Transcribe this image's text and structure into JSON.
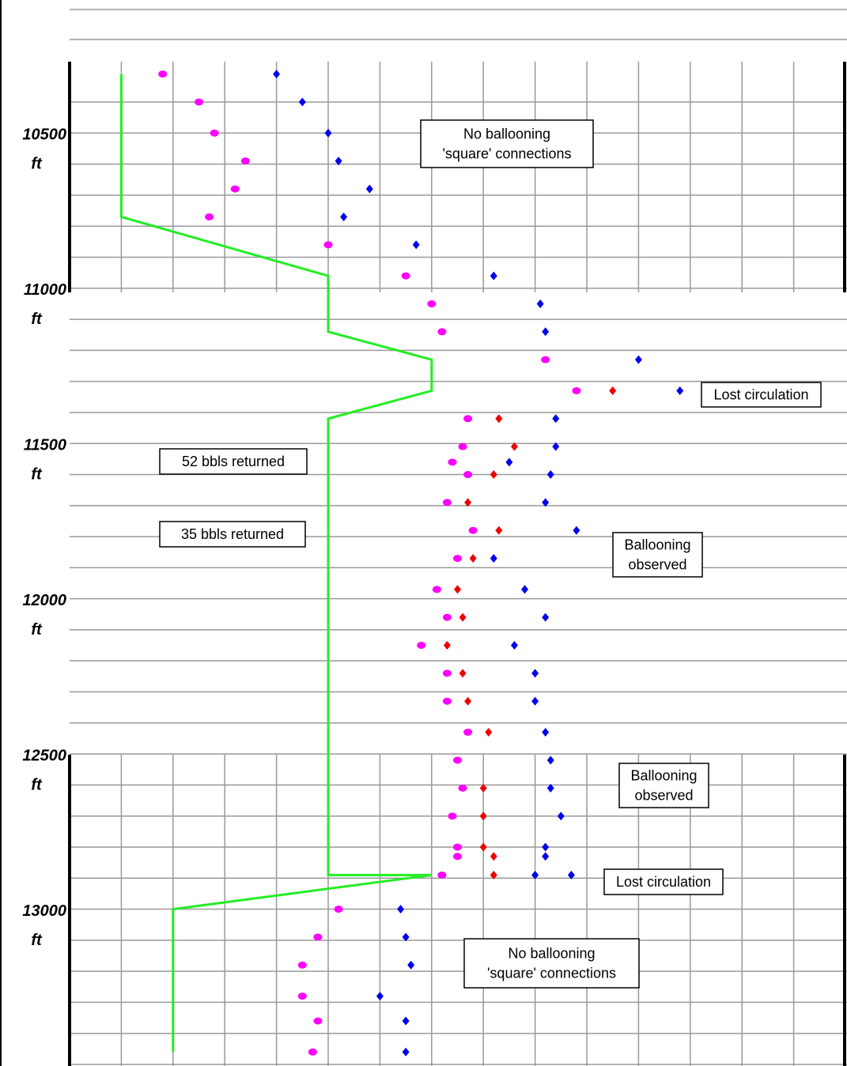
{
  "chart_data": {
    "type": "scatter",
    "y_unit": "ft",
    "ylim": [
      10270,
      13500
    ],
    "y_inverted": true,
    "yticks": [
      10500,
      11000,
      11500,
      12000,
      12500,
      13000
    ],
    "ygrid": [
      10400,
      10500,
      10600,
      10700,
      10800,
      10900,
      11000,
      11100,
      11200,
      11300,
      11400,
      11500,
      11600,
      11700,
      11800,
      11900,
      12000,
      12100,
      12200,
      12300,
      12400,
      12500,
      12600,
      12700,
      12800,
      12900,
      13000,
      13100,
      13200,
      13300,
      13400,
      13500
    ],
    "xlim": [
      0,
      15
    ],
    "xgrid": [
      1,
      2,
      3,
      4,
      5,
      6,
      7,
      8,
      9,
      10,
      11,
      12,
      13,
      14
    ],
    "series": [
      {
        "type": "line",
        "color": "#22ee22",
        "x": [
          1.0,
          1.0,
          5.0,
          5.0,
          7.0,
          7.0,
          5.0,
          5.0,
          7.0,
          2.0,
          2.0
        ],
        "y": [
          10310,
          10770,
          10960,
          11140,
          11230,
          11330,
          11420,
          12890,
          12890,
          13000,
          13460
        ]
      },
      {
        "type": "scatter",
        "marker": "circle",
        "color": "#ff00ff",
        "x": [
          1.8,
          2.5,
          2.8,
          3.4,
          3.2,
          2.7,
          5.0,
          6.5,
          7.0,
          7.2,
          9.2,
          9.8,
          7.7,
          7.6,
          7.4,
          7.7,
          7.3,
          7.8,
          7.5,
          7.1,
          7.3,
          6.8,
          7.3,
          7.3,
          7.7,
          7.5,
          7.6,
          7.4,
          7.5,
          7.5,
          7.2,
          5.2,
          4.8,
          4.5,
          4.5,
          4.8,
          4.7
        ],
        "y": [
          10310,
          10400,
          10500,
          10590,
          10680,
          10770,
          10860,
          10960,
          11050,
          11140,
          11230,
          11330,
          11420,
          11510,
          11560,
          11600,
          11690,
          11780,
          11870,
          11970,
          12060,
          12150,
          12240,
          12330,
          12430,
          12520,
          12610,
          12700,
          12800,
          12830,
          12890,
          13000,
          13090,
          13180,
          13280,
          13360,
          13460
        ]
      },
      {
        "type": "scatter",
        "marker": "diamond",
        "color": "#0000ee",
        "x": [
          4.0,
          4.5,
          5.0,
          5.2,
          5.8,
          5.3,
          6.7,
          8.2,
          9.1,
          9.2,
          11.0,
          11.8,
          9.4,
          9.4,
          8.5,
          9.3,
          9.2,
          9.8,
          8.2,
          8.8,
          9.2,
          8.6,
          9.0,
          9.0,
          9.2,
          9.3,
          9.3,
          9.5,
          9.2,
          9.2,
          9.0,
          9.7,
          6.4,
          6.5,
          6.6,
          6.0,
          6.5,
          6.5
        ],
        "y": [
          10310,
          10400,
          10500,
          10590,
          10680,
          10770,
          10860,
          10960,
          11050,
          11140,
          11230,
          11330,
          11420,
          11510,
          11560,
          11600,
          11690,
          11780,
          11870,
          11970,
          12060,
          12150,
          12240,
          12330,
          12430,
          12520,
          12610,
          12700,
          12800,
          12830,
          12890,
          12890,
          13000,
          13090,
          13180,
          13280,
          13360,
          13460
        ]
      },
      {
        "type": "scatter",
        "marker": "diamond",
        "color": "#ee0000",
        "x": [
          10.5,
          8.3,
          8.6,
          8.2,
          7.7,
          8.3,
          7.8,
          7.5,
          7.6,
          7.3,
          7.6,
          7.7,
          8.1,
          8.0,
          8.0,
          8.0,
          8.2,
          8.2
        ],
        "y": [
          11330,
          11420,
          11510,
          11600,
          11690,
          11780,
          11870,
          11970,
          12060,
          12150,
          12240,
          12330,
          12430,
          12610,
          12700,
          12800,
          12830,
          12890
        ]
      }
    ],
    "annotations": [
      {
        "lines": [
          "No ballooning",
          "'square' connections"
        ]
      },
      {
        "lines": [
          "Lost circulation"
        ]
      },
      {
        "lines": [
          "52 bbls returned"
        ]
      },
      {
        "lines": [
          "35 bbls returned"
        ]
      },
      {
        "lines": [
          "Ballooning",
          "observed"
        ]
      },
      {
        "lines": [
          "Ballooning",
          "observed"
        ]
      },
      {
        "lines": [
          "Lost circulation"
        ]
      },
      {
        "lines": [
          "No ballooning",
          "'square' connections"
        ]
      }
    ]
  }
}
